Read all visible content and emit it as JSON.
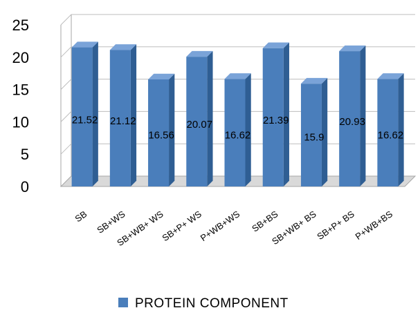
{
  "chart_data": {
    "type": "bar",
    "style": "3d-column",
    "categories": [
      "SB",
      "SB+WS",
      "SB+WB+ WS",
      "SB+P+ WS",
      "P+WB+WS",
      "SB+BS",
      "SB+WB+ BS",
      "SB+P+ BS",
      "P+WB+BS"
    ],
    "series": [
      {
        "name": "PROTEIN COMPONENT",
        "values": [
          21.52,
          21.12,
          16.56,
          20.07,
          16.62,
          21.39,
          15.9,
          20.93,
          16.62
        ],
        "labels": [
          "21.52",
          "21.12",
          "16.56",
          "20.07",
          "16.62",
          "21.39",
          "15.9",
          "20.93",
          "16.62"
        ]
      }
    ],
    "ylim": [
      0,
      25
    ],
    "yticks": [
      "0",
      "5",
      "10",
      "15",
      "20",
      "25"
    ],
    "grid": true,
    "legend_position": "bottom",
    "colors": {
      "bar_front": "#4a7ebb",
      "bar_top": "#7aa3d8",
      "bar_side": "#2f5e93",
      "grid": "#bdbdbd",
      "floor": "#a6a6a6"
    }
  }
}
